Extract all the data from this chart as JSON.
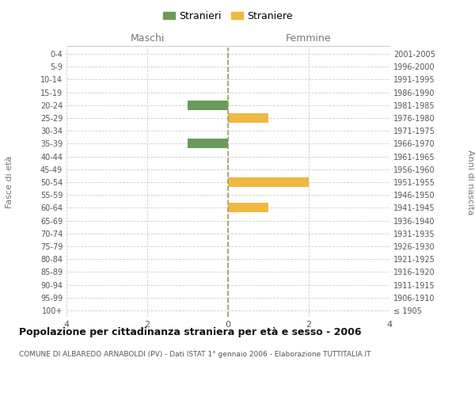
{
  "age_groups": [
    "100+",
    "95-99",
    "90-94",
    "85-89",
    "80-84",
    "75-79",
    "70-74",
    "65-69",
    "60-64",
    "55-59",
    "50-54",
    "45-49",
    "40-44",
    "35-39",
    "30-34",
    "25-29",
    "20-24",
    "15-19",
    "10-14",
    "5-9",
    "0-4"
  ],
  "birth_years": [
    "≤ 1905",
    "1906-1910",
    "1911-1915",
    "1916-1920",
    "1921-1925",
    "1926-1930",
    "1931-1935",
    "1936-1940",
    "1941-1945",
    "1946-1950",
    "1951-1955",
    "1956-1960",
    "1961-1965",
    "1966-1970",
    "1971-1975",
    "1976-1980",
    "1981-1985",
    "1986-1990",
    "1991-1995",
    "1996-2000",
    "2001-2005"
  ],
  "maschi": [
    0,
    0,
    0,
    0,
    0,
    0,
    0,
    0,
    0,
    0,
    0,
    0,
    0,
    1,
    0,
    0,
    1,
    0,
    0,
    0,
    0
  ],
  "femmine": [
    0,
    0,
    0,
    0,
    0,
    0,
    0,
    0,
    1,
    0,
    2,
    0,
    0,
    0,
    0,
    1,
    0,
    0,
    0,
    0,
    0
  ],
  "color_maschi": "#6a9a5a",
  "color_femmine": "#f0b840",
  "background_color": "#ffffff",
  "grid_color": "#cccccc",
  "xlim": 4,
  "title": "Popolazione per cittadinanza straniera per età e sesso - 2006",
  "subtitle": "COMUNE DI ALBAREDO ARNABOLDI (PV) - Dati ISTAT 1° gennaio 2006 - Elaborazione TUTTITALIA.IT",
  "label_maschi": "Maschi",
  "label_femmine": "Femmine",
  "legend_stranieri": "Stranieri",
  "legend_straniere": "Straniere",
  "ylabel_left": "Fasce di età",
  "ylabel_right": "Anni di nascita",
  "bar_height": 0.75
}
